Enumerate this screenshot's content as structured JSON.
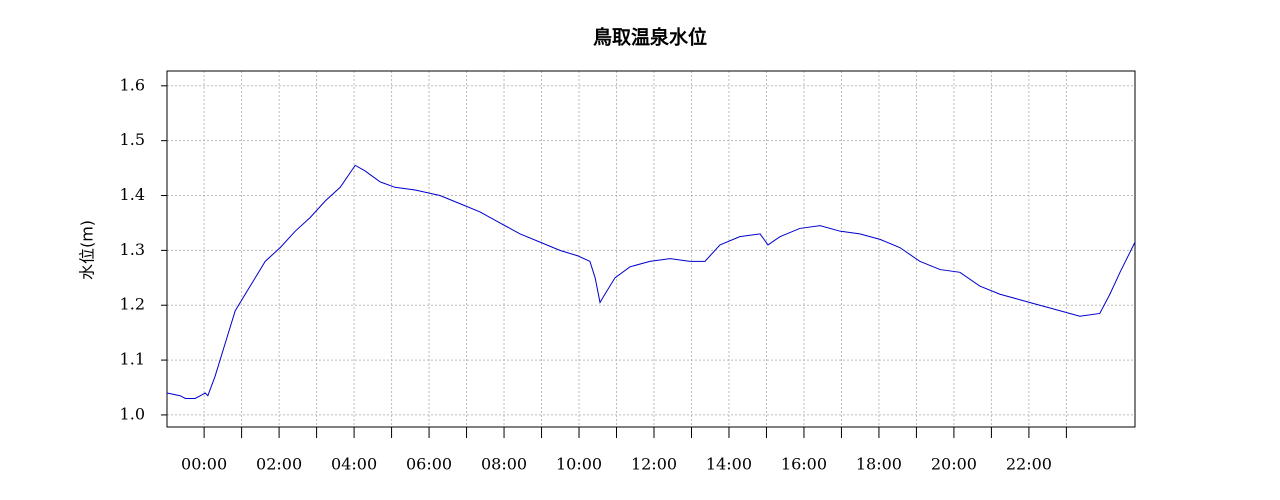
{
  "chart_data": {
    "type": "line",
    "title": "鳥取温泉水位",
    "y_label": "水位(m)",
    "x": [
      -0.99,
      -0.64,
      -0.5,
      -0.24,
      -0.1,
      0.03,
      0.1,
      0.29,
      0.56,
      0.83,
      1.23,
      1.63,
      2.03,
      2.43,
      2.83,
      3.23,
      3.63,
      4.03,
      4.29,
      4.69,
      5.09,
      5.63,
      6.29,
      6.83,
      7.36,
      7.89,
      8.43,
      8.96,
      9.49,
      9.97,
      10.29,
      10.43,
      10.56,
      10.69,
      10.96,
      11.36,
      11.89,
      12.43,
      12.96,
      13.36,
      13.76,
      14.29,
      14.83,
      15.04,
      15.36,
      15.89,
      16.43,
      16.96,
      17.49,
      18.03,
      18.56,
      19.09,
      19.63,
      20.16,
      20.69,
      21.23,
      21.76,
      22.29,
      22.83,
      23.36,
      23.89,
      24.16,
      24.43,
      24.83
    ],
    "series": [
      {
        "name": "水位",
        "color": "#0000cc",
        "values": [
          1.04,
          1.035,
          1.03,
          1.03,
          1.035,
          1.04,
          1.035,
          1.07,
          1.13,
          1.19,
          1.235,
          1.28,
          1.305,
          1.335,
          1.36,
          1.39,
          1.415,
          1.455,
          1.445,
          1.425,
          1.415,
          1.41,
          1.4,
          1.385,
          1.37,
          1.35,
          1.33,
          1.315,
          1.3,
          1.29,
          1.28,
          1.25,
          1.205,
          1.22,
          1.25,
          1.27,
          1.28,
          1.285,
          1.28,
          1.28,
          1.31,
          1.325,
          1.33,
          1.31,
          1.325,
          1.34,
          1.345,
          1.335,
          1.33,
          1.32,
          1.305,
          1.28,
          1.265,
          1.26,
          1.235,
          1.22,
          1.21,
          1.2,
          1.19,
          1.18,
          1.185,
          1.22,
          1.26,
          1.315
        ]
      }
    ],
    "xlim": [
      -0.99,
      24.83
    ],
    "ylim": [
      0.978,
      1.627
    ],
    "xticks": [
      {
        "value": 0,
        "label": "00:00"
      },
      {
        "value": 2,
        "label": "02:00"
      },
      {
        "value": 4,
        "label": "04:00"
      },
      {
        "value": 6,
        "label": "06:00"
      },
      {
        "value": 8,
        "label": "08:00"
      },
      {
        "value": 10,
        "label": "10:00"
      },
      {
        "value": 12,
        "label": "12:00"
      },
      {
        "value": 14,
        "label": "14:00"
      },
      {
        "value": 16,
        "label": "16:00"
      },
      {
        "value": 18,
        "label": "18:00"
      },
      {
        "value": 20,
        "label": "20:00"
      },
      {
        "value": 22,
        "label": "22:00"
      }
    ],
    "x_minor_ticks": [
      1,
      3,
      5,
      7,
      9,
      11,
      13,
      15,
      17,
      19,
      21,
      23
    ],
    "yticks": [
      {
        "value": 1,
        "label": "1.0"
      },
      1.1,
      1.2,
      1.3,
      1.4,
      1.5,
      1.6
    ],
    "grid": true
  }
}
